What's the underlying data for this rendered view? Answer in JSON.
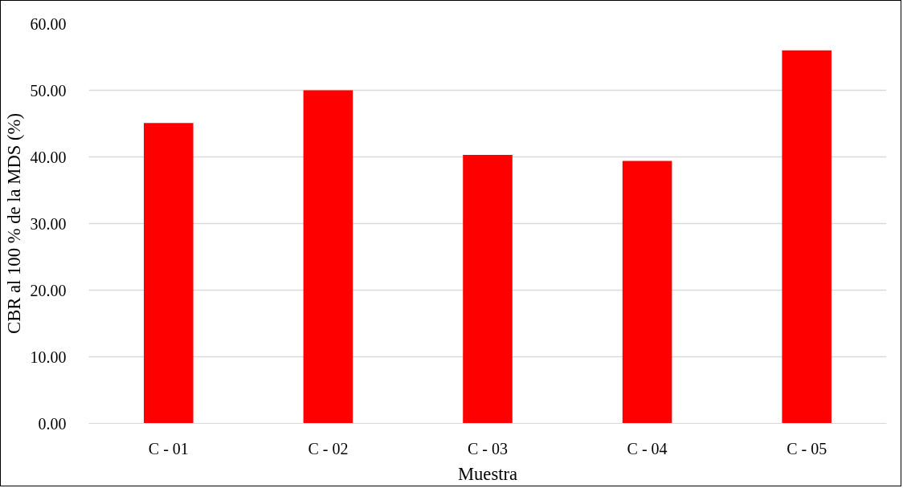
{
  "chart_data": {
    "type": "bar",
    "xlabel": "Muestra",
    "ylabel": "CBR al 100 % de la MDS (%)",
    "categories": [
      "C - 01",
      "C - 02",
      "C - 03",
      "C - 04",
      "C - 05"
    ],
    "values": [
      45.1,
      50.0,
      40.3,
      39.4,
      56.0
    ],
    "color": "#ff0000",
    "ylim": [
      0,
      60
    ],
    "yticks": [
      {
        "value": 0,
        "label": "0.00"
      },
      {
        "value": 10,
        "label": "10.00"
      },
      {
        "value": 20,
        "label": "20.00"
      },
      {
        "value": 30,
        "label": "30.00"
      },
      {
        "value": 40,
        "label": "40.00"
      },
      {
        "value": 50,
        "label": "50.00"
      },
      {
        "value": 60,
        "label": "60.00"
      }
    ],
    "grid": "y"
  }
}
